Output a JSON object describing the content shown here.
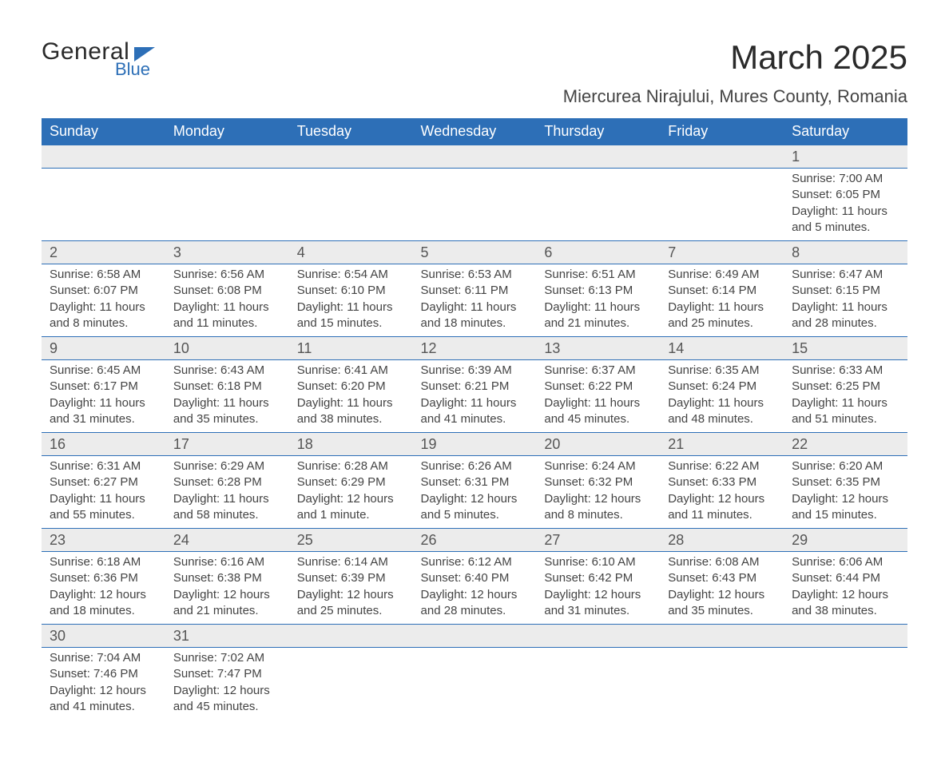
{
  "logo": {
    "main": "General",
    "sub": "Blue"
  },
  "title": "March 2025",
  "location": "Miercurea Nirajului, Mures County, Romania",
  "colors": {
    "header_bg": "#2d6fb7",
    "header_fg": "#ffffff",
    "daynum_bg": "#ececec",
    "row_border": "#2d6fb7",
    "text": "#444444",
    "title_text": "#2a2a2a",
    "page_bg": "#ffffff"
  },
  "typography": {
    "title_fontsize": 42,
    "location_fontsize": 22,
    "header_fontsize": 18,
    "daynum_fontsize": 18,
    "details_fontsize": 15
  },
  "columns": [
    "Sunday",
    "Monday",
    "Tuesday",
    "Wednesday",
    "Thursday",
    "Friday",
    "Saturday"
  ],
  "weeks": [
    [
      null,
      null,
      null,
      null,
      null,
      null,
      {
        "n": "1",
        "sunrise": "Sunrise: 7:00 AM",
        "sunset": "Sunset: 6:05 PM",
        "daylight": "Daylight: 11 hours and 5 minutes."
      }
    ],
    [
      {
        "n": "2",
        "sunrise": "Sunrise: 6:58 AM",
        "sunset": "Sunset: 6:07 PM",
        "daylight": "Daylight: 11 hours and 8 minutes."
      },
      {
        "n": "3",
        "sunrise": "Sunrise: 6:56 AM",
        "sunset": "Sunset: 6:08 PM",
        "daylight": "Daylight: 11 hours and 11 minutes."
      },
      {
        "n": "4",
        "sunrise": "Sunrise: 6:54 AM",
        "sunset": "Sunset: 6:10 PM",
        "daylight": "Daylight: 11 hours and 15 minutes."
      },
      {
        "n": "5",
        "sunrise": "Sunrise: 6:53 AM",
        "sunset": "Sunset: 6:11 PM",
        "daylight": "Daylight: 11 hours and 18 minutes."
      },
      {
        "n": "6",
        "sunrise": "Sunrise: 6:51 AM",
        "sunset": "Sunset: 6:13 PM",
        "daylight": "Daylight: 11 hours and 21 minutes."
      },
      {
        "n": "7",
        "sunrise": "Sunrise: 6:49 AM",
        "sunset": "Sunset: 6:14 PM",
        "daylight": "Daylight: 11 hours and 25 minutes."
      },
      {
        "n": "8",
        "sunrise": "Sunrise: 6:47 AM",
        "sunset": "Sunset: 6:15 PM",
        "daylight": "Daylight: 11 hours and 28 minutes."
      }
    ],
    [
      {
        "n": "9",
        "sunrise": "Sunrise: 6:45 AM",
        "sunset": "Sunset: 6:17 PM",
        "daylight": "Daylight: 11 hours and 31 minutes."
      },
      {
        "n": "10",
        "sunrise": "Sunrise: 6:43 AM",
        "sunset": "Sunset: 6:18 PM",
        "daylight": "Daylight: 11 hours and 35 minutes."
      },
      {
        "n": "11",
        "sunrise": "Sunrise: 6:41 AM",
        "sunset": "Sunset: 6:20 PM",
        "daylight": "Daylight: 11 hours and 38 minutes."
      },
      {
        "n": "12",
        "sunrise": "Sunrise: 6:39 AM",
        "sunset": "Sunset: 6:21 PM",
        "daylight": "Daylight: 11 hours and 41 minutes."
      },
      {
        "n": "13",
        "sunrise": "Sunrise: 6:37 AM",
        "sunset": "Sunset: 6:22 PM",
        "daylight": "Daylight: 11 hours and 45 minutes."
      },
      {
        "n": "14",
        "sunrise": "Sunrise: 6:35 AM",
        "sunset": "Sunset: 6:24 PM",
        "daylight": "Daylight: 11 hours and 48 minutes."
      },
      {
        "n": "15",
        "sunrise": "Sunrise: 6:33 AM",
        "sunset": "Sunset: 6:25 PM",
        "daylight": "Daylight: 11 hours and 51 minutes."
      }
    ],
    [
      {
        "n": "16",
        "sunrise": "Sunrise: 6:31 AM",
        "sunset": "Sunset: 6:27 PM",
        "daylight": "Daylight: 11 hours and 55 minutes."
      },
      {
        "n": "17",
        "sunrise": "Sunrise: 6:29 AM",
        "sunset": "Sunset: 6:28 PM",
        "daylight": "Daylight: 11 hours and 58 minutes."
      },
      {
        "n": "18",
        "sunrise": "Sunrise: 6:28 AM",
        "sunset": "Sunset: 6:29 PM",
        "daylight": "Daylight: 12 hours and 1 minute."
      },
      {
        "n": "19",
        "sunrise": "Sunrise: 6:26 AM",
        "sunset": "Sunset: 6:31 PM",
        "daylight": "Daylight: 12 hours and 5 minutes."
      },
      {
        "n": "20",
        "sunrise": "Sunrise: 6:24 AM",
        "sunset": "Sunset: 6:32 PM",
        "daylight": "Daylight: 12 hours and 8 minutes."
      },
      {
        "n": "21",
        "sunrise": "Sunrise: 6:22 AM",
        "sunset": "Sunset: 6:33 PM",
        "daylight": "Daylight: 12 hours and 11 minutes."
      },
      {
        "n": "22",
        "sunrise": "Sunrise: 6:20 AM",
        "sunset": "Sunset: 6:35 PM",
        "daylight": "Daylight: 12 hours and 15 minutes."
      }
    ],
    [
      {
        "n": "23",
        "sunrise": "Sunrise: 6:18 AM",
        "sunset": "Sunset: 6:36 PM",
        "daylight": "Daylight: 12 hours and 18 minutes."
      },
      {
        "n": "24",
        "sunrise": "Sunrise: 6:16 AM",
        "sunset": "Sunset: 6:38 PM",
        "daylight": "Daylight: 12 hours and 21 minutes."
      },
      {
        "n": "25",
        "sunrise": "Sunrise: 6:14 AM",
        "sunset": "Sunset: 6:39 PM",
        "daylight": "Daylight: 12 hours and 25 minutes."
      },
      {
        "n": "26",
        "sunrise": "Sunrise: 6:12 AM",
        "sunset": "Sunset: 6:40 PM",
        "daylight": "Daylight: 12 hours and 28 minutes."
      },
      {
        "n": "27",
        "sunrise": "Sunrise: 6:10 AM",
        "sunset": "Sunset: 6:42 PM",
        "daylight": "Daylight: 12 hours and 31 minutes."
      },
      {
        "n": "28",
        "sunrise": "Sunrise: 6:08 AM",
        "sunset": "Sunset: 6:43 PM",
        "daylight": "Daylight: 12 hours and 35 minutes."
      },
      {
        "n": "29",
        "sunrise": "Sunrise: 6:06 AM",
        "sunset": "Sunset: 6:44 PM",
        "daylight": "Daylight: 12 hours and 38 minutes."
      }
    ],
    [
      {
        "n": "30",
        "sunrise": "Sunrise: 7:04 AM",
        "sunset": "Sunset: 7:46 PM",
        "daylight": "Daylight: 12 hours and 41 minutes."
      },
      {
        "n": "31",
        "sunrise": "Sunrise: 7:02 AM",
        "sunset": "Sunset: 7:47 PM",
        "daylight": "Daylight: 12 hours and 45 minutes."
      },
      null,
      null,
      null,
      null,
      null
    ]
  ]
}
